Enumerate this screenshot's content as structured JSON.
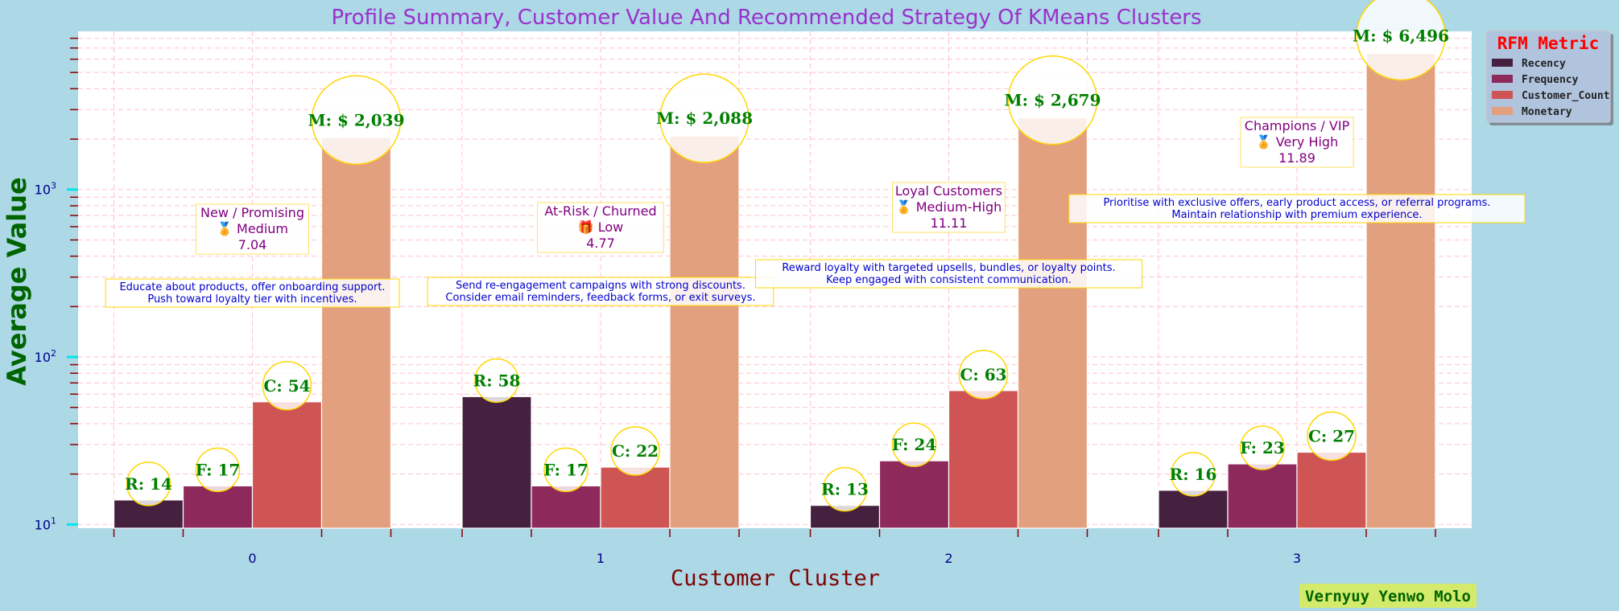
{
  "chart_data": {
    "type": "bar",
    "title": "Profile Summary, Customer Value And Recommended Strategy Of KMeans Clusters",
    "xlabel": "Customer Cluster",
    "ylabel": "Average Value",
    "yscale": "log",
    "ylim": [
      9.5,
      8800
    ],
    "categories": [
      "0",
      "1",
      "2",
      "3"
    ],
    "yticks": [
      {
        "value": 10,
        "label": "10",
        "exp": "1"
      },
      {
        "value": 100,
        "label": "10",
        "exp": "2"
      },
      {
        "value": 1000,
        "label": "10",
        "exp": "3"
      }
    ],
    "series": [
      {
        "name": "Recency",
        "color": "#45213f",
        "prefix": "R: ",
        "values": [
          14,
          58,
          13,
          16
        ],
        "labels": [
          "14",
          "58",
          "13",
          "16"
        ]
      },
      {
        "name": "Frequency",
        "color": "#8e295c",
        "prefix": "F: ",
        "values": [
          17,
          17,
          24,
          23
        ],
        "labels": [
          "17",
          "17",
          "24",
          "23"
        ]
      },
      {
        "name": "Customer_Count",
        "color": "#cf5454",
        "prefix": "C: ",
        "values": [
          54,
          22,
          63,
          27
        ],
        "labels": [
          "54",
          "22",
          "63",
          "27"
        ]
      },
      {
        "name": "Monetary",
        "color": "#e3a07e",
        "prefix": "M: $ ",
        "values": [
          2039,
          2088,
          2679,
          6496
        ],
        "labels": [
          "2,039",
          "2,088",
          "2,679",
          "6,496"
        ]
      }
    ],
    "profiles": [
      {
        "segment": "New / Promising",
        "icon": "medal",
        "tier": "Medium",
        "score": "7.04"
      },
      {
        "segment": "At-Risk / Churned",
        "icon": "gift",
        "tier": "Low",
        "score": "4.77"
      },
      {
        "segment": "Loyal Customers",
        "icon": "medal",
        "tier": "Medium-High",
        "score": "11.11"
      },
      {
        "segment": "Champions / VIP",
        "icon": "medal",
        "tier": "Very High",
        "score": "11.89"
      }
    ],
    "strategies": [
      [
        "Educate about products, offer onboarding support.",
        "Push toward loyalty tier with incentives."
      ],
      [
        "Send re-engagement campaigns with strong discounts.",
        "Consider email reminders, feedback forms, or exit surveys."
      ],
      [
        "Reward loyalty with targeted upsells, bundles, or loyalty points.",
        "Keep engaged with consistent communication."
      ],
      [
        "Prioritise with exclusive offers, early product access, or referral programs.",
        "Maintain relationship with premium experience."
      ]
    ],
    "legend": {
      "title": "RFM Metric",
      "placement": "outside-right-top"
    },
    "grid": true
  },
  "author": "Vernyuy Yenwo Molo",
  "colors": {
    "background": "#add8e6",
    "plot_bg": "#ffffff",
    "grid": "#ffc0cb",
    "label_text": "#008000",
    "title": "#9932cc"
  }
}
